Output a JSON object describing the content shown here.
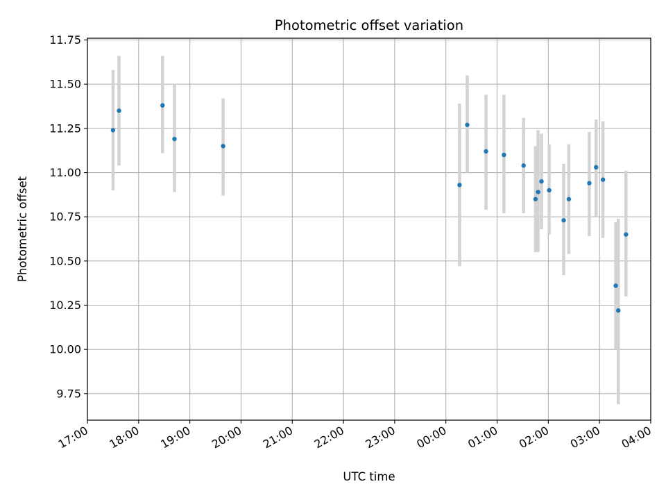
{
  "chart_data": {
    "type": "scatter",
    "title": "Photometric offset variation",
    "xlabel": "UTC time",
    "ylabel": "Photometric offset",
    "x_axis_kind": "time",
    "xlim": [
      "17:00",
      "04:00"
    ],
    "ylim": [
      9.6,
      11.76
    ],
    "x_ticks": [
      "17:00",
      "18:00",
      "19:00",
      "20:00",
      "21:00",
      "22:00",
      "23:00",
      "00:00",
      "01:00",
      "02:00",
      "03:00",
      "04:00"
    ],
    "y_ticks": [
      "9.75",
      "10.00",
      "10.25",
      "10.50",
      "10.75",
      "11.00",
      "11.25",
      "11.50",
      "11.75"
    ],
    "grid": true,
    "colors": {
      "point": "#1f77b4",
      "errorbar": "#d3d3d3",
      "grid": "#b0b0b0"
    },
    "points": [
      {
        "x": "17:30",
        "y": 11.24,
        "ylo": 10.9,
        "yhi": 11.58
      },
      {
        "x": "17:37",
        "y": 11.35,
        "ylo": 11.04,
        "yhi": 11.66
      },
      {
        "x": "18:28",
        "y": 11.38,
        "ylo": 11.11,
        "yhi": 11.66
      },
      {
        "x": "18:42",
        "y": 11.19,
        "ylo": 10.89,
        "yhi": 11.5
      },
      {
        "x": "19:39",
        "y": 11.15,
        "ylo": 10.87,
        "yhi": 11.42
      },
      {
        "x": "00:16",
        "y": 10.93,
        "ylo": 10.47,
        "yhi": 11.39
      },
      {
        "x": "00:25",
        "y": 11.27,
        "ylo": 11.0,
        "yhi": 11.55
      },
      {
        "x": "00:47",
        "y": 11.12,
        "ylo": 10.79,
        "yhi": 11.44
      },
      {
        "x": "01:08",
        "y": 11.1,
        "ylo": 10.77,
        "yhi": 11.44
      },
      {
        "x": "01:31",
        "y": 11.04,
        "ylo": 10.77,
        "yhi": 11.31
      },
      {
        "x": "01:45",
        "y": 10.85,
        "ylo": 10.55,
        "yhi": 11.15
      },
      {
        "x": "01:48",
        "y": 10.89,
        "ylo": 10.55,
        "yhi": 11.24
      },
      {
        "x": "01:52",
        "y": 10.95,
        "ylo": 10.68,
        "yhi": 11.22
      },
      {
        "x": "02:01",
        "y": 10.9,
        "ylo": 10.65,
        "yhi": 11.16
      },
      {
        "x": "02:18",
        "y": 10.73,
        "ylo": 10.42,
        "yhi": 11.05
      },
      {
        "x": "02:24",
        "y": 10.85,
        "ylo": 10.54,
        "yhi": 11.16
      },
      {
        "x": "02:48",
        "y": 10.94,
        "ylo": 10.64,
        "yhi": 11.23
      },
      {
        "x": "02:56",
        "y": 11.03,
        "ylo": 10.75,
        "yhi": 11.3
      },
      {
        "x": "03:04",
        "y": 10.96,
        "ylo": 10.63,
        "yhi": 11.29
      },
      {
        "x": "03:19",
        "y": 10.36,
        "ylo": 10.0,
        "yhi": 10.72
      },
      {
        "x": "03:22",
        "y": 10.22,
        "ylo": 9.69,
        "yhi": 10.74
      },
      {
        "x": "03:31",
        "y": 10.65,
        "ylo": 10.3,
        "yhi": 11.01
      }
    ]
  }
}
